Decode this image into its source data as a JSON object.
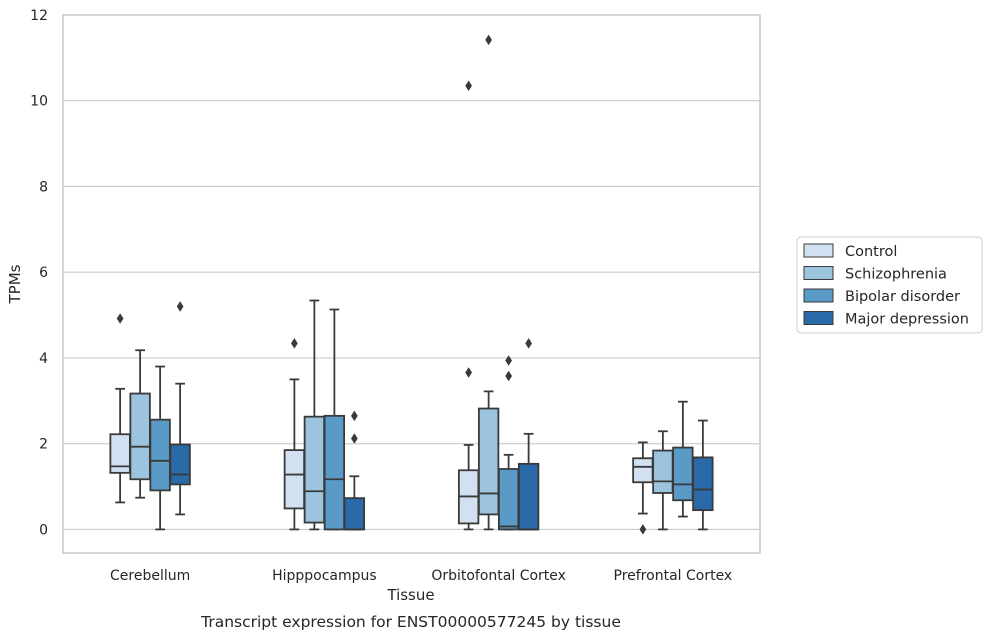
{
  "chart_data": {
    "type": "box",
    "caption": "Transcript expression for ENST00000577245 by tissue",
    "xlabel": "Tissue",
    "ylabel": "TPMs",
    "ylim": [
      -0.55,
      12
    ],
    "yticks": [
      0,
      2,
      4,
      6,
      8,
      10,
      12
    ],
    "grid": "horizontal",
    "legend_position": "right",
    "categories": [
      "Cerebellum",
      "Hipppocampus",
      "Orbitofontal Cortex",
      "Prefrontal Cortex"
    ],
    "series": [
      {
        "name": "Control",
        "color": "#d1e1f1",
        "boxes": [
          {
            "whislo": 0.63,
            "q1": 1.32,
            "med": 1.47,
            "q3": 2.22,
            "whishi": 3.28,
            "fliers": [
              4.92
            ]
          },
          {
            "whislo": 0.0,
            "q1": 0.49,
            "med": 1.28,
            "q3": 1.85,
            "whishi": 3.5,
            "fliers": [
              4.34
            ]
          },
          {
            "whislo": 0.0,
            "q1": 0.14,
            "med": 0.77,
            "q3": 1.38,
            "whishi": 1.97,
            "fliers": [
              3.66,
              10.35
            ]
          },
          {
            "whislo": 0.37,
            "q1": 1.1,
            "med": 1.46,
            "q3": 1.66,
            "whishi": 2.03,
            "fliers": [
              0.0
            ]
          }
        ]
      },
      {
        "name": "Schizophrenia",
        "color": "#9cc4de",
        "boxes": [
          {
            "whislo": 0.74,
            "q1": 1.17,
            "med": 1.93,
            "q3": 3.17,
            "whishi": 4.18,
            "fliers": []
          },
          {
            "whislo": 0.0,
            "q1": 0.16,
            "med": 0.89,
            "q3": 2.63,
            "whishi": 5.34,
            "fliers": []
          },
          {
            "whislo": 0.0,
            "q1": 0.35,
            "med": 0.84,
            "q3": 2.82,
            "whishi": 3.22,
            "fliers": [
              11.42
            ]
          },
          {
            "whislo": 0.0,
            "q1": 0.85,
            "med": 1.12,
            "q3": 1.84,
            "whishi": 2.29,
            "fliers": []
          }
        ]
      },
      {
        "name": "Bipolar disorder",
        "color": "#5a9ac7",
        "boxes": [
          {
            "whislo": 0.0,
            "q1": 0.91,
            "med": 1.6,
            "q3": 2.56,
            "whishi": 3.8,
            "fliers": []
          },
          {
            "whislo": 0.0,
            "q1": 0.0,
            "med": 1.17,
            "q3": 2.65,
            "whishi": 5.13,
            "fliers": []
          },
          {
            "whislo": 0.0,
            "q1": 0.0,
            "med": 0.07,
            "q3": 1.41,
            "whishi": 1.74,
            "fliers": [
              3.58,
              3.94
            ]
          },
          {
            "whislo": 0.3,
            "q1": 0.68,
            "med": 1.05,
            "q3": 1.91,
            "whishi": 2.98,
            "fliers": []
          }
        ]
      },
      {
        "name": "Major depression",
        "color": "#2a6aa8",
        "boxes": [
          {
            "whislo": 0.35,
            "q1": 1.05,
            "med": 1.28,
            "q3": 1.98,
            "whishi": 3.4,
            "fliers": [
              5.2
            ]
          },
          {
            "whislo": 0.0,
            "q1": 0.0,
            "med": 0.0,
            "q3": 0.73,
            "whishi": 1.24,
            "fliers": [
              2.12,
              2.65
            ]
          },
          {
            "whislo": 0.0,
            "q1": 0.0,
            "med": 0.0,
            "q3": 1.53,
            "whishi": 2.23,
            "fliers": [
              4.34
            ]
          },
          {
            "whislo": 0.0,
            "q1": 0.45,
            "med": 0.93,
            "q3": 1.68,
            "whishi": 2.54,
            "fliers": []
          }
        ]
      }
    ]
  }
}
